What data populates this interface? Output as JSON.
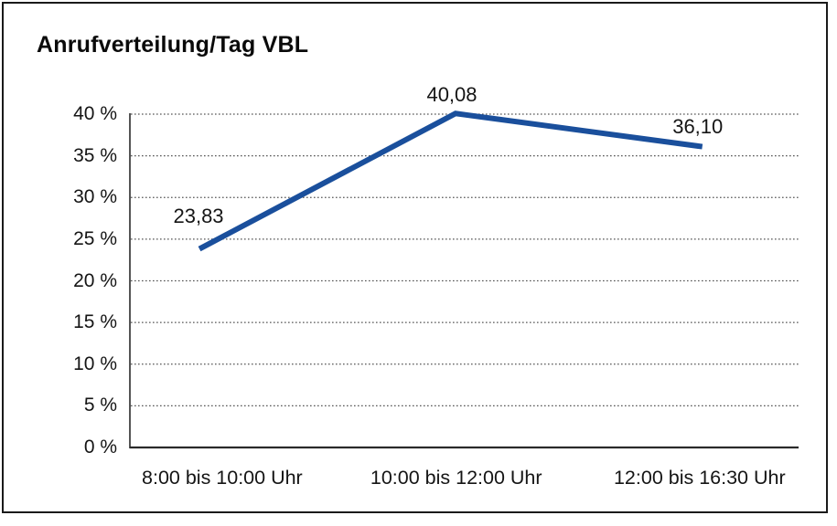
{
  "frame": {
    "border_color": "#1a1a1a",
    "background": "#ffffff"
  },
  "chart_data": {
    "type": "line",
    "title": "Anrufverteilung/Tag VBL",
    "categories": [
      "8:00 bis 10:00 Uhr",
      "10:00 bis 12:00 Uhr",
      "12:00 bis 16:30 Uhr"
    ],
    "values": [
      23.83,
      40.08,
      36.1
    ],
    "data_labels": [
      "23,83",
      "40,08",
      "36,10"
    ],
    "yticks": [
      {
        "value": 0,
        "label": "0 %"
      },
      {
        "value": 5,
        "label": "5 %"
      },
      {
        "value": 10,
        "label": "10 %"
      },
      {
        "value": 15,
        "label": "15 %"
      },
      {
        "value": 20,
        "label": "20 %"
      },
      {
        "value": 25,
        "label": "25 %"
      },
      {
        "value": 30,
        "label": "30 %"
      },
      {
        "value": 35,
        "label": "35 %"
      },
      {
        "value": 40,
        "label": "40 %"
      }
    ],
    "ylim": [
      0,
      40
    ],
    "xlabel": "",
    "ylabel": "",
    "grid": "horizontal-dotted",
    "legend": "none",
    "line_color": "#1a4f9c",
    "gridline_color": "#555555",
    "axis_color": "#2a2a2a",
    "text_color": "#151515"
  }
}
